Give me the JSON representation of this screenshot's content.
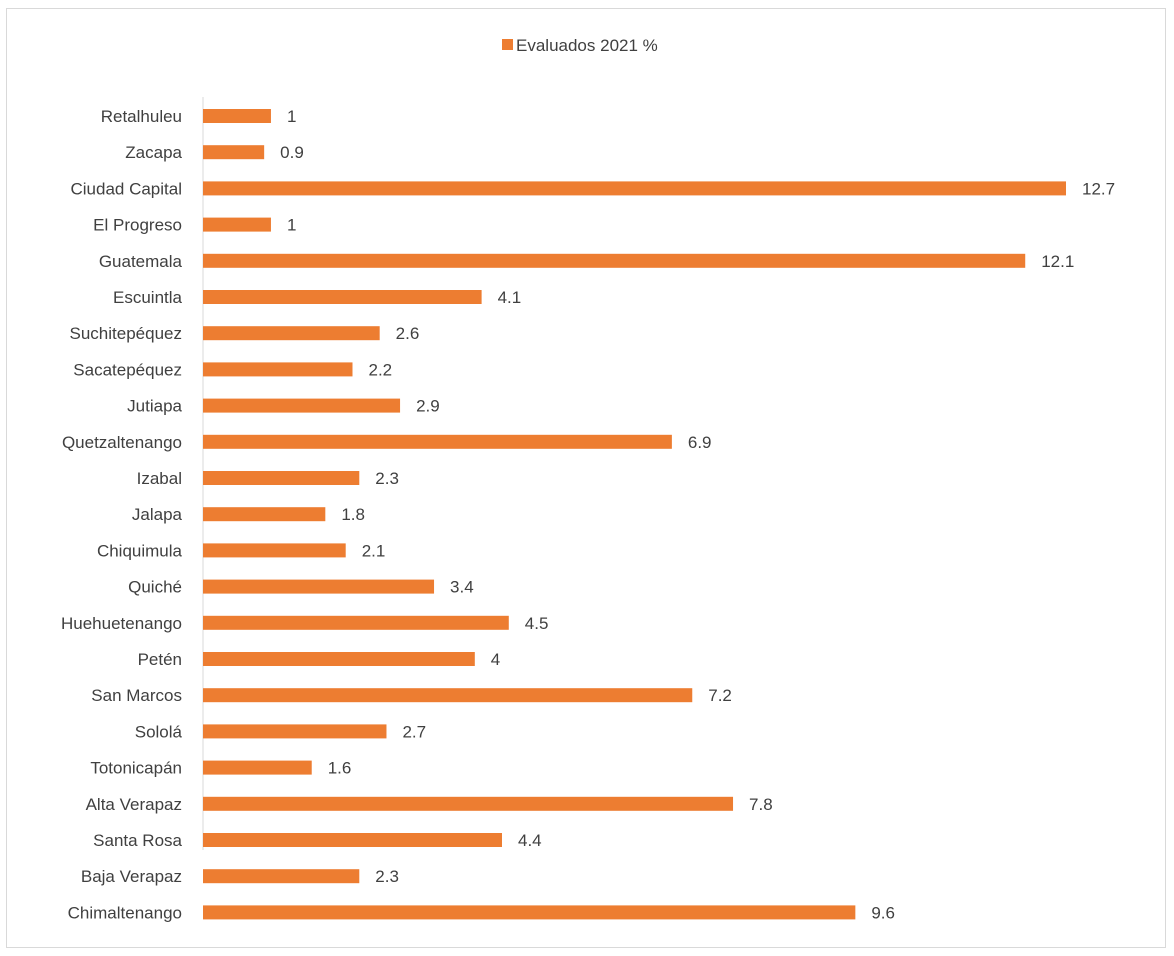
{
  "chart_data": {
    "type": "bar",
    "orientation": "horizontal",
    "categories": [
      "Retalhuleu",
      "Zacapa",
      "Ciudad Capital",
      "El Progreso",
      "Guatemala",
      "Escuintla",
      "Suchitepéquez",
      "Sacatepéquez",
      "Jutiapa",
      "Quetzaltenango",
      "Izabal",
      "Jalapa",
      "Chiquimula",
      "Quiché",
      "Huehuetenango",
      "Petén",
      "San Marcos",
      "Sololá",
      "Totonicapán",
      "Alta Verapaz",
      "Santa Rosa",
      "Baja Verapaz",
      "Chimaltenango"
    ],
    "series": [
      {
        "name": "Evaluados 2021 %",
        "color": "#ed7d31",
        "values": [
          1,
          0.9,
          12.7,
          1,
          12.1,
          4.1,
          2.6,
          2.2,
          2.9,
          6.9,
          2.3,
          1.8,
          2.1,
          3.4,
          4.5,
          4,
          7.2,
          2.7,
          1.6,
          7.8,
          4.4,
          2.3,
          9.6
        ]
      }
    ],
    "xlim": [
      0,
      12.7
    ],
    "data_labels": true,
    "grid": false,
    "legend_position": "top"
  }
}
